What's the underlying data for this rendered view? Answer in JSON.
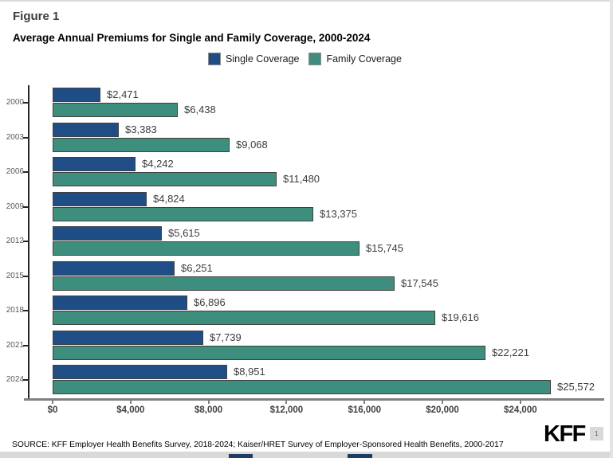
{
  "figure_label": "Figure 1",
  "title": "Average Annual Premiums for Single and Family Coverage, 2000-2024",
  "legend": [
    {
      "label": "Single Coverage",
      "color": "#1f4e87"
    },
    {
      "label": "Family Coverage",
      "color": "#3d8e7d"
    }
  ],
  "chart_data": {
    "type": "bar",
    "orientation": "horizontal",
    "title": "Average Annual Premiums for Single and Family Coverage, 2000-2024",
    "categories": [
      "2000",
      "2003",
      "2006",
      "2009",
      "2012",
      "2015",
      "2018",
      "2021",
      "2024"
    ],
    "series": [
      {
        "name": "Single Coverage",
        "color": "#1f4e87",
        "values": [
          2471,
          3383,
          4242,
          4824,
          5615,
          6251,
          6896,
          7739,
          8951
        ],
        "labels": [
          "$2,471",
          "$3,383",
          "$4,242",
          "$4,824",
          "$5,615",
          "$6,251",
          "$6,896",
          "$7,739",
          "$8,951"
        ]
      },
      {
        "name": "Family Coverage",
        "color": "#3d8e7d",
        "values": [
          6438,
          9068,
          11480,
          13375,
          15745,
          17545,
          19616,
          22221,
          25572
        ],
        "labels": [
          "$6,438",
          "$9,068",
          "$11,480",
          "$13,375",
          "$15,745",
          "$17,545",
          "$19,616",
          "$22,221",
          "$25,572"
        ]
      }
    ],
    "x_axis": {
      "ticks": [
        0,
        4000,
        8000,
        12000,
        16000,
        20000,
        24000
      ],
      "tick_labels": [
        "$0",
        "$4,000",
        "$8,000",
        "$12,000",
        "$16,000",
        "$20,000",
        "$24,000"
      ],
      "max": 28300
    },
    "grid": false,
    "legend_position": "top",
    "value_labels": true
  },
  "source": "SOURCE: KFF Employer Health Benefits Survey, 2018-2024; Kaiser/HRET Survey of Employer-Sponsored Health Benefits, 2000-2017",
  "footer": {
    "logo": "KFF",
    "page_number": "1"
  }
}
